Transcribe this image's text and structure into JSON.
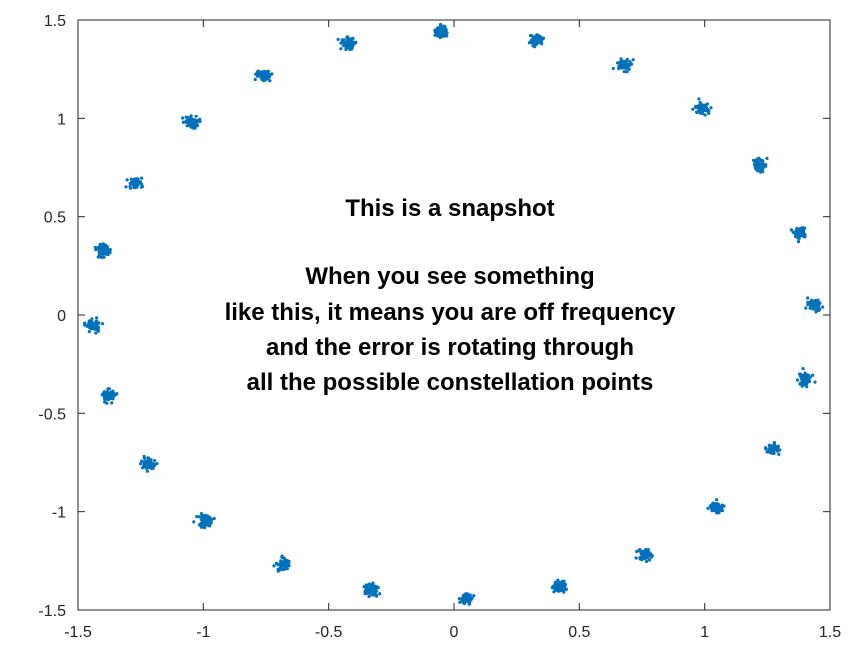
{
  "chart_data": {
    "type": "scatter",
    "title": "",
    "xlabel": "",
    "ylabel": "",
    "xlim": [
      -1.5,
      1.5
    ],
    "ylim": [
      -1.5,
      1.5
    ],
    "xticks": [
      "-1.5",
      "-1",
      "-0.5",
      "0",
      "0.5",
      "1",
      "1.5"
    ],
    "yticks": [
      "1.5",
      "1",
      "0.5",
      "0",
      "-0.5",
      "-1",
      "-1.5"
    ],
    "grid": false,
    "legend": "none",
    "marker_color": "#0072BD",
    "annotation": [
      "This is a snapshot",
      "",
      "When you see something",
      "like this, it means you are off frequency",
      "and the error is rotating through",
      "all the possible constellation points"
    ],
    "clusters": [
      {
        "x": -0.05,
        "y": 1.44
      },
      {
        "x": 0.33,
        "y": 1.4
      },
      {
        "x": 0.68,
        "y": 1.27
      },
      {
        "x": 0.99,
        "y": 1.05
      },
      {
        "x": 1.22,
        "y": 0.76
      },
      {
        "x": 1.38,
        "y": 0.42
      },
      {
        "x": 1.44,
        "y": 0.05
      },
      {
        "x": 1.4,
        "y": -0.33
      },
      {
        "x": 1.27,
        "y": -0.68
      },
      {
        "x": 1.05,
        "y": -0.98
      },
      {
        "x": 0.76,
        "y": -1.22
      },
      {
        "x": 0.42,
        "y": -1.38
      },
      {
        "x": 0.05,
        "y": -1.44
      },
      {
        "x": -0.33,
        "y": -1.4
      },
      {
        "x": -0.68,
        "y": -1.27
      },
      {
        "x": -0.99,
        "y": -1.05
      },
      {
        "x": -1.22,
        "y": -0.76
      },
      {
        "x": -1.38,
        "y": -0.41
      },
      {
        "x": -1.44,
        "y": -0.05
      },
      {
        "x": -1.4,
        "y": 0.33
      },
      {
        "x": -1.27,
        "y": 0.67
      },
      {
        "x": -1.05,
        "y": 0.98
      },
      {
        "x": -0.76,
        "y": 1.22
      },
      {
        "x": -0.42,
        "y": 1.38
      }
    ]
  }
}
